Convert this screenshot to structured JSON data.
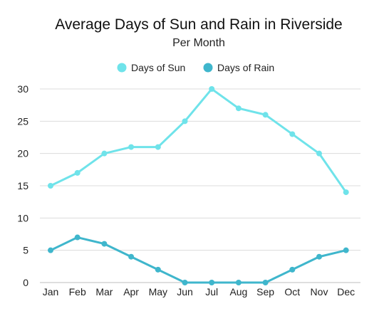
{
  "chart_data": {
    "type": "line",
    "title": "Average Days of Sun and Rain in Riverside",
    "subtitle": "Per Month",
    "xlabel": "",
    "ylabel": "",
    "categories": [
      "Jan",
      "Feb",
      "Mar",
      "Apr",
      "May",
      "Jun",
      "Jul",
      "Aug",
      "Sep",
      "Oct",
      "Nov",
      "Dec"
    ],
    "ylim": [
      0,
      30
    ],
    "yticks": [
      0,
      5,
      10,
      15,
      20,
      25,
      30
    ],
    "grid": "horizontal",
    "legend_position": "top-center",
    "series": [
      {
        "name": "Days of Sun",
        "color": "#6fe3ea",
        "values": [
          15,
          17,
          20,
          21,
          21,
          25,
          30,
          27,
          26,
          23,
          20,
          14
        ]
      },
      {
        "name": "Days of Rain",
        "color": "#3fb6cc",
        "values": [
          5,
          7,
          6,
          4,
          2,
          0,
          0,
          0,
          0,
          2,
          4,
          5
        ]
      }
    ]
  }
}
